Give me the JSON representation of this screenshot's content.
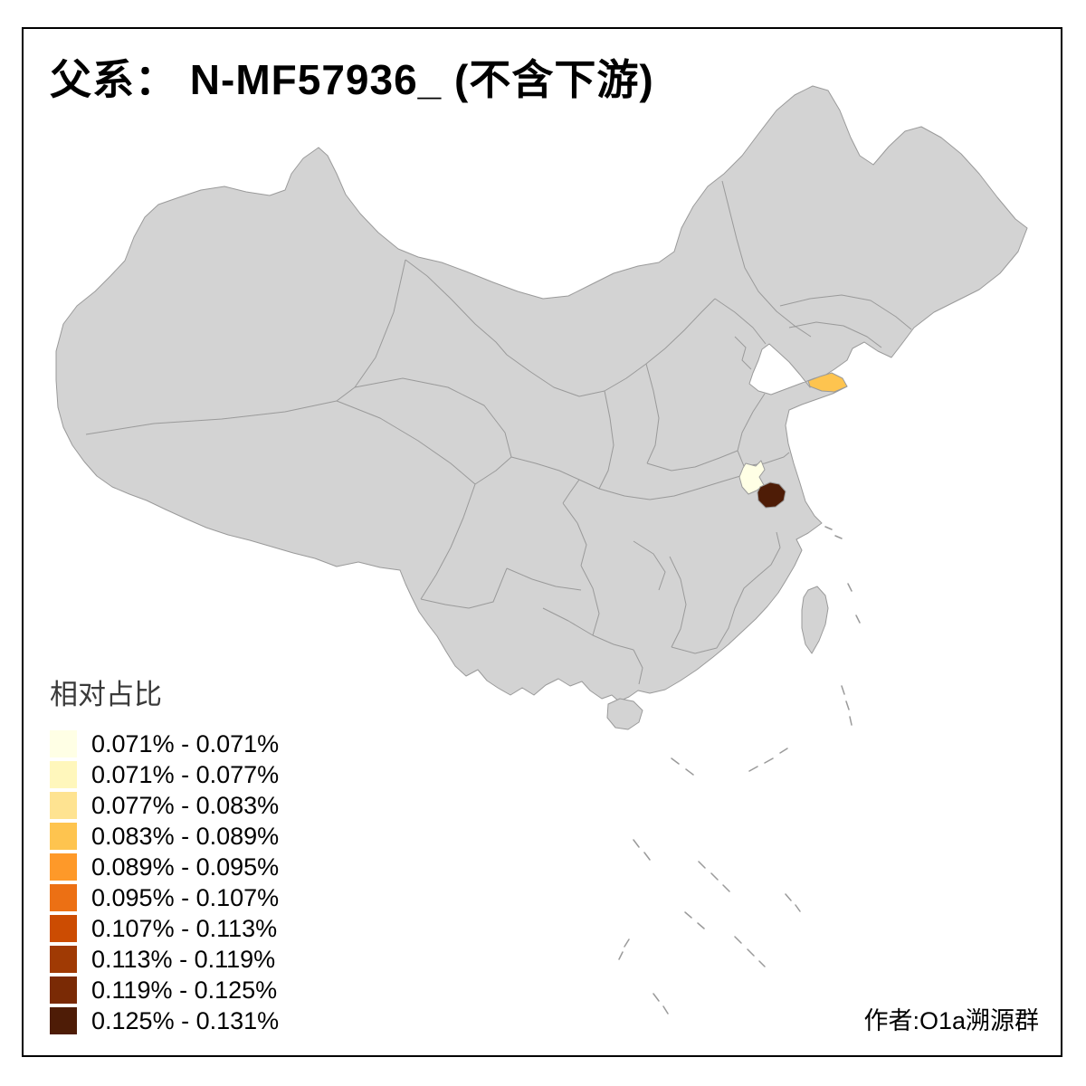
{
  "title": "父系： N-MF57936_ (不含下游)",
  "legend": {
    "title": "相对占比",
    "items": [
      {
        "label": "0.071% - 0.071%",
        "color": "#FFFFE5"
      },
      {
        "label": "0.071% - 0.077%",
        "color": "#FFF7BC"
      },
      {
        "label": "0.077% - 0.083%",
        "color": "#FEE391"
      },
      {
        "label": "0.083% - 0.089%",
        "color": "#FEC44F"
      },
      {
        "label": "0.089% - 0.095%",
        "color": "#FE9929"
      },
      {
        "label": "0.095% - 0.107%",
        "color": "#EC7014"
      },
      {
        "label": "0.107% - 0.113%",
        "color": "#CC4C02"
      },
      {
        "label": "0.113% - 0.119%",
        "color": "#A03A04"
      },
      {
        "label": "0.119% - 0.125%",
        "color": "#7A2A05"
      },
      {
        "label": "0.125% - 0.131%",
        "color": "#4E1C06"
      }
    ]
  },
  "attribution": "作者:O1a溯源群",
  "map": {
    "colors": {
      "land": "#D3D3D3",
      "border": "#9A9A9A",
      "frame": "#000000",
      "background": "#FFFFFF"
    },
    "regions": [
      {
        "id": "region-a",
        "color": "#FEC44F"
      },
      {
        "id": "region-b",
        "color": "#FFFFE5"
      },
      {
        "id": "region-c",
        "color": "#4E1C06"
      }
    ]
  }
}
